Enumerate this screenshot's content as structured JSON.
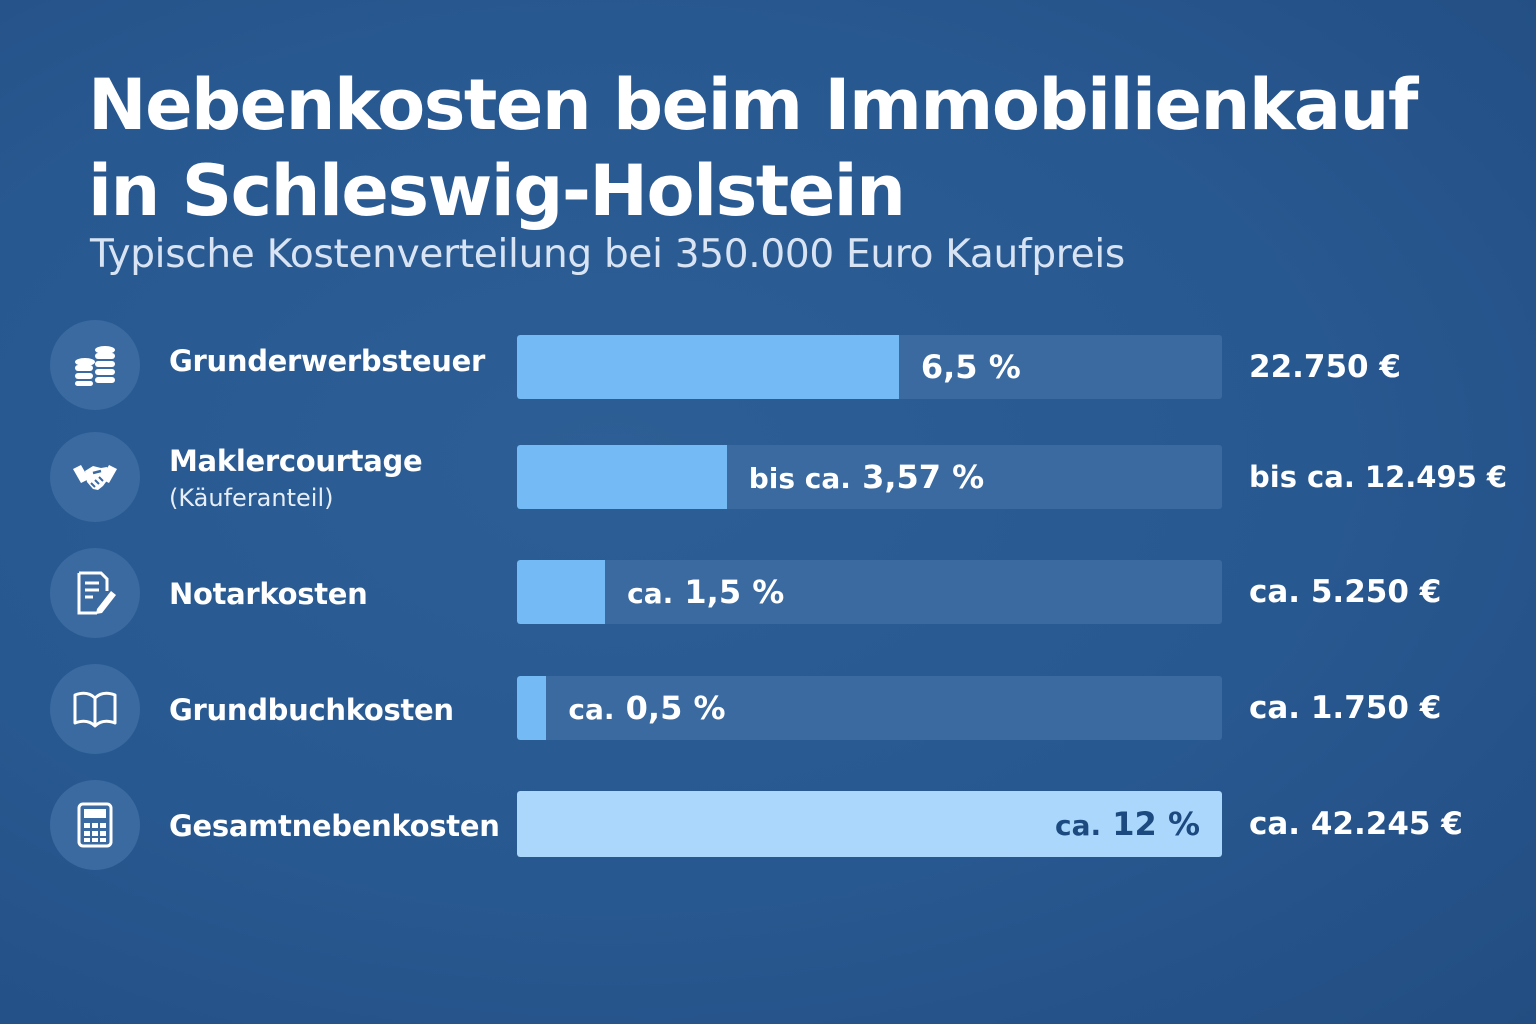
{
  "title_line1": "Nebenkosten beim Immobilienkauf",
  "title_line2": "in Schleswig-Holstein",
  "subtitle": "Typische Kostenverteilung bei 350.000 Euro Kaufpreis",
  "colors": {
    "background": "#285890",
    "track": "#3a6aa0",
    "bar": "#74bbf5",
    "total_bar": "#aad7fb"
  },
  "chart_data": {
    "type": "bar",
    "orientation": "horizontal",
    "xlim": [
      0,
      12
    ],
    "categories": [
      "Grunderwerbsteuer",
      "Maklercourtage",
      "Notarkosten",
      "Grundbuchkosten",
      "Gesamtnebenkosten"
    ],
    "rows": [
      {
        "label": "Grunderwerbsteuer",
        "sublabel": "",
        "icon": "coins-icon",
        "value": 6.5,
        "prefix": "",
        "pct_text": "6,5 %",
        "amount": "22.750 €"
      },
      {
        "label": "Maklercourtage",
        "sublabel": "(Käuferanteil)",
        "icon": "handshake-icon",
        "value": 3.57,
        "prefix": "bis ca.",
        "pct_text": "3,57 %",
        "amount": "bis ca. 12.495 €"
      },
      {
        "label": "Notarkosten",
        "sublabel": "",
        "icon": "document-pen-icon",
        "value": 1.5,
        "prefix": "ca.",
        "pct_text": "1,5 %",
        "amount": "ca. 5.250 €"
      },
      {
        "label": "Grundbuchkosten",
        "sublabel": "",
        "icon": "book-icon",
        "value": 0.5,
        "prefix": "ca.",
        "pct_text": "0,5 %",
        "amount": "ca. 1.750 €"
      },
      {
        "label": "Gesamtnebenkosten",
        "sublabel": "",
        "icon": "calculator-icon",
        "value": 12,
        "prefix": "ca.",
        "pct_text": "12 %",
        "amount": "ca. 42.245 €",
        "total": true
      }
    ]
  }
}
